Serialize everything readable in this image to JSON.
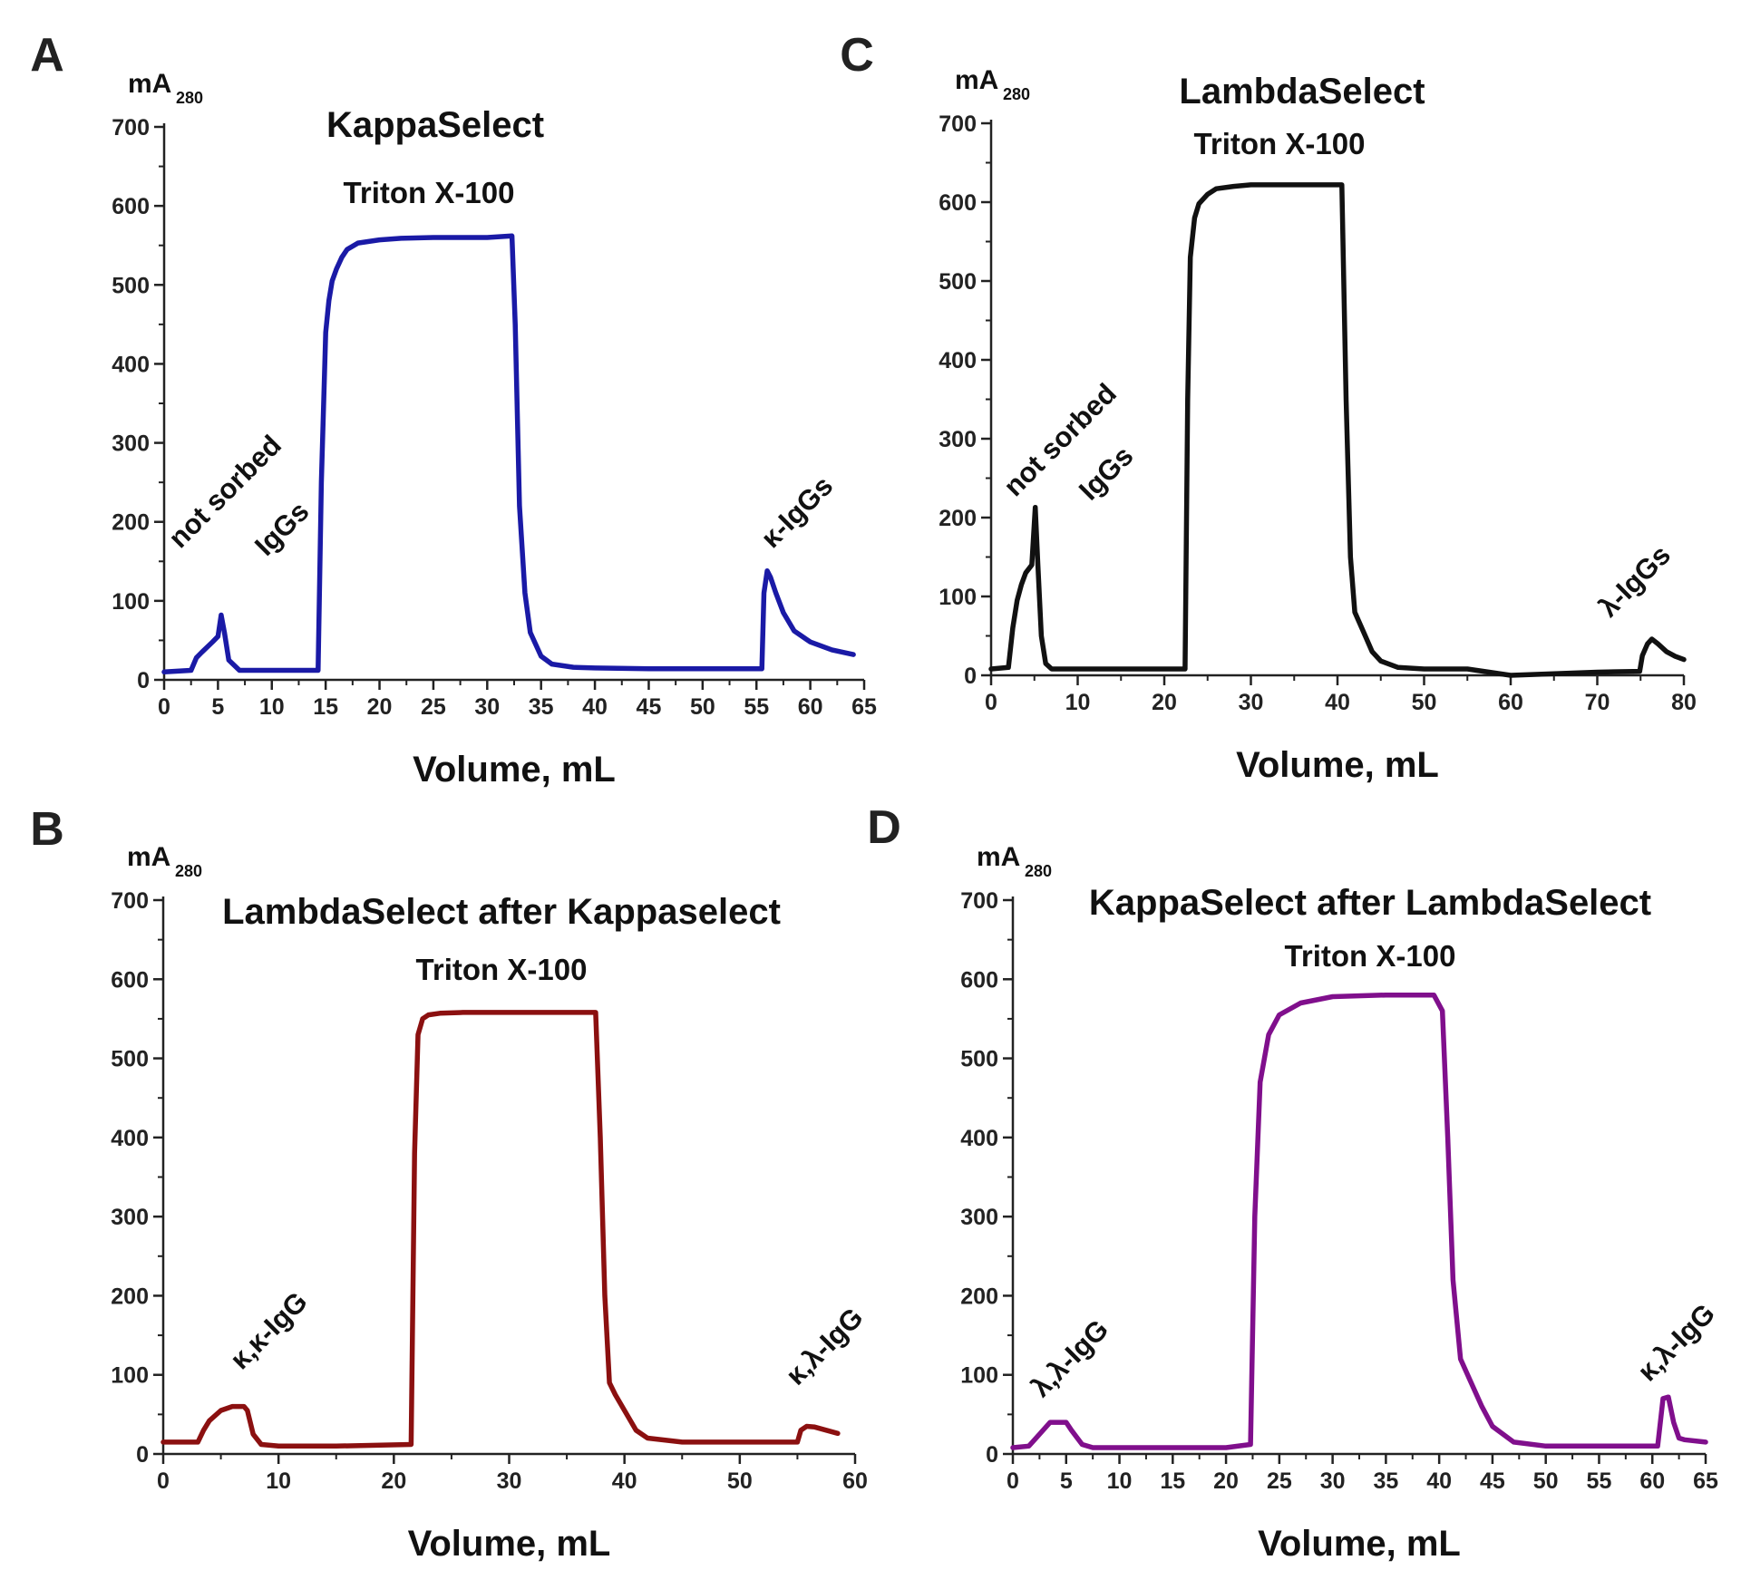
{
  "chart_data": [
    {
      "panel": "A",
      "type": "line",
      "title": "KappaSelect",
      "subtitle": "Triton X-100",
      "xlabel": "Volume, mL",
      "ylabel_main": "mA",
      "ylabel_sub": "280",
      "xlim": [
        0,
        65
      ],
      "ylim": [
        0,
        700
      ],
      "xticks": [
        0,
        5,
        10,
        15,
        20,
        25,
        30,
        35,
        40,
        45,
        50,
        55,
        60,
        65
      ],
      "yticks": [
        0,
        100,
        200,
        300,
        400,
        500,
        600,
        700
      ],
      "color": "#1a1aa6",
      "annotations": [
        {
          "text": "not sorbed",
          "x": 1.5,
          "y": 165,
          "rotate": -45
        },
        {
          "text": "IgGs",
          "x": 9.5,
          "y": 155,
          "rotate": -45
        },
        {
          "text": "κ-IgGs",
          "x": 56.5,
          "y": 165,
          "rotate": -45
        }
      ],
      "series": [
        {
          "name": "A280",
          "x": [
            0,
            2.5,
            3,
            3.5,
            4.5,
            5,
            5.3,
            5.6,
            6,
            7,
            10,
            14.3,
            14.6,
            15,
            15.3,
            15.6,
            16,
            16.5,
            17,
            18,
            20,
            22,
            25,
            30,
            32.3,
            32.6,
            33,
            33.5,
            34,
            35,
            36,
            38,
            40,
            45,
            50,
            55.5,
            55.7,
            56,
            56.3,
            56.8,
            57.5,
            58.5,
            60,
            62,
            64
          ],
          "y": [
            10,
            12,
            28,
            35,
            48,
            55,
            82,
            60,
            25,
            12,
            12,
            12,
            250,
            440,
            480,
            505,
            520,
            535,
            545,
            553,
            557,
            559,
            560,
            560,
            562,
            450,
            220,
            110,
            60,
            30,
            20,
            16,
            15,
            14,
            14,
            14,
            110,
            138,
            130,
            110,
            85,
            62,
            48,
            38,
            32
          ]
        }
      ]
    },
    {
      "panel": "C",
      "type": "line",
      "title": "LambdaSelect",
      "subtitle": "Triton X-100",
      "xlabel": "Volume, mL",
      "ylabel_main": "mA",
      "ylabel_sub": "280",
      "xlim": [
        0,
        80
      ],
      "ylim": [
        0,
        700
      ],
      "xticks": [
        0,
        10,
        20,
        30,
        40,
        50,
        60,
        70,
        80
      ],
      "yticks": [
        0,
        100,
        200,
        300,
        400,
        500,
        600,
        700
      ],
      "color": "#111111",
      "annotations": [
        {
          "text": "not sorbed",
          "x": 2.8,
          "y": 225,
          "rotate": -45
        },
        {
          "text": "IgGs",
          "x": 11.5,
          "y": 220,
          "rotate": -45
        },
        {
          "text": "λ-IgGs",
          "x": 71.5,
          "y": 72,
          "rotate": -45
        }
      ],
      "series": [
        {
          "name": "A280",
          "x": [
            0,
            2,
            2.5,
            3,
            3.5,
            4,
            4.7,
            5.1,
            5.4,
            5.8,
            6.3,
            7,
            10,
            20,
            22.4,
            22.7,
            23,
            23.5,
            24,
            25,
            26,
            28,
            30,
            35,
            40.5,
            41,
            41.5,
            42,
            43,
            44,
            45,
            47,
            50,
            55,
            60,
            65,
            70,
            74.9,
            75.2,
            75.8,
            76.3,
            77,
            78,
            79,
            80
          ],
          "y": [
            8,
            10,
            60,
            95,
            115,
            130,
            140,
            213,
            140,
            50,
            15,
            8,
            8,
            8,
            8,
            350,
            530,
            580,
            598,
            610,
            617,
            620,
            622,
            622,
            622,
            350,
            150,
            80,
            55,
            30,
            18,
            10,
            8,
            8,
            0,
            2,
            4,
            5,
            25,
            40,
            46,
            40,
            30,
            24,
            20
          ]
        }
      ]
    },
    {
      "panel": "B",
      "type": "line",
      "title": "LambdaSelect after Kappaselect",
      "subtitle": "Triton X-100",
      "xlabel": "Volume, mL",
      "ylabel_main": "mA",
      "ylabel_sub": "280",
      "xlim": [
        0,
        60
      ],
      "ylim": [
        0,
        700
      ],
      "xticks": [
        0,
        10,
        20,
        30,
        40,
        50,
        60
      ],
      "yticks": [
        0,
        100,
        200,
        300,
        400,
        500,
        600,
        700
      ],
      "color": "#8b1010",
      "annotations": [
        {
          "text": "κ,κ-IgG",
          "x": 6.8,
          "y": 105,
          "rotate": -45
        },
        {
          "text": "κ,λ-IgG",
          "x": 55,
          "y": 85,
          "rotate": -45
        }
      ],
      "series": [
        {
          "name": "A280",
          "x": [
            0,
            3,
            3.5,
            4,
            5,
            6,
            7,
            7.3,
            7.8,
            8.5,
            10,
            15,
            21.5,
            21.8,
            22.1,
            22.5,
            23,
            24,
            26,
            30,
            35,
            37.5,
            37.9,
            38.3,
            38.7,
            39.2,
            40,
            41,
            42,
            45,
            50,
            55,
            55.3,
            55.8,
            56.5,
            57.5,
            58.5
          ],
          "y": [
            15,
            15,
            30,
            42,
            55,
            60,
            60,
            55,
            25,
            12,
            10,
            10,
            12,
            380,
            530,
            550,
            555,
            557,
            558,
            558,
            558,
            558,
            400,
            200,
            90,
            75,
            55,
            30,
            20,
            15,
            15,
            15,
            30,
            35,
            34,
            30,
            26
          ]
        }
      ]
    },
    {
      "panel": "D",
      "type": "line",
      "title": "KappaSelect after LambdaSelect",
      "subtitle": "Triton X-100",
      "xlabel": "Volume, mL",
      "ylabel_main": "mA",
      "ylabel_sub": "280",
      "xlim": [
        0,
        65
      ],
      "ylim": [
        0,
        700
      ],
      "xticks": [
        0,
        5,
        10,
        15,
        20,
        25,
        30,
        35,
        40,
        45,
        50,
        55,
        60,
        65
      ],
      "yticks": [
        0,
        100,
        200,
        300,
        400,
        500,
        600,
        700
      ],
      "color": "#800f8c",
      "annotations": [
        {
          "text": "λ,λ-IgG",
          "x": 2.8,
          "y": 70,
          "rotate": -45
        },
        {
          "text": "κ,λ-IgG",
          "x": 59.7,
          "y": 90,
          "rotate": -45
        }
      ],
      "series": [
        {
          "name": "A280",
          "x": [
            0,
            1.5,
            2.5,
            3.5,
            5,
            5.5,
            6.5,
            7.5,
            10,
            15,
            20,
            22.3,
            22.7,
            23.2,
            24,
            25,
            27,
            30,
            35,
            39.5,
            40.3,
            40.8,
            41.3,
            42,
            43,
            44,
            45,
            47,
            50,
            55,
            60.5,
            61,
            61.5,
            62,
            62.5,
            63,
            65
          ],
          "y": [
            8,
            10,
            25,
            40,
            40,
            30,
            12,
            8,
            8,
            8,
            8,
            12,
            300,
            470,
            530,
            555,
            570,
            578,
            580,
            580,
            560,
            400,
            220,
            120,
            90,
            60,
            35,
            15,
            10,
            10,
            10,
            70,
            72,
            40,
            20,
            18,
            15
          ]
        }
      ]
    }
  ]
}
